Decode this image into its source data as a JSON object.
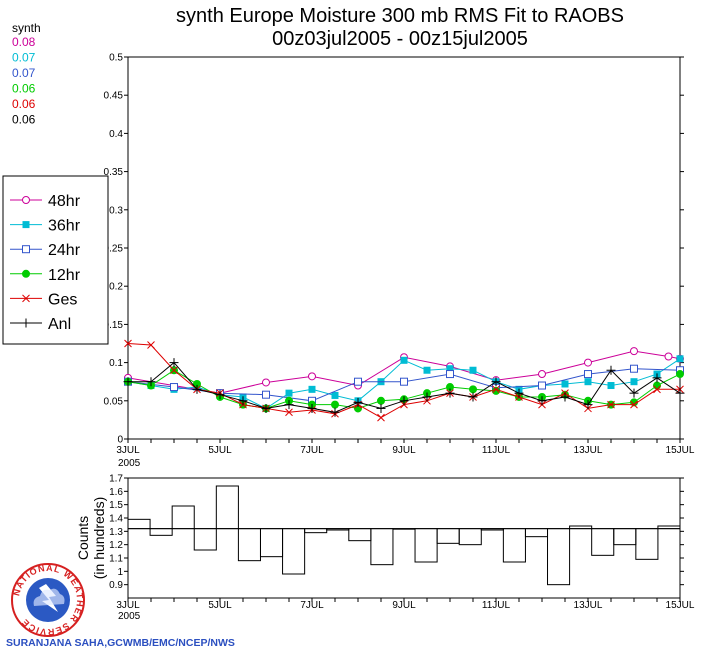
{
  "title_line1": "synth Europe Moisture 300 mb RMS Fit to RAOBS",
  "title_line2": "00z03jul2005 - 00z15jul2005",
  "summary": {
    "label": "synth",
    "values": [
      {
        "text": "0.08",
        "color": "#cc0099"
      },
      {
        "text": "0.07",
        "color": "#00bcd4"
      },
      {
        "text": "0.07",
        "color": "#3355cc"
      },
      {
        "text": "0.06",
        "color": "#00cc00"
      },
      {
        "text": "0.06",
        "color": "#dd0000"
      },
      {
        "text": "0.06",
        "color": "#000000"
      }
    ]
  },
  "credit": "SURANJANA SAHA,GCWMB/EMC/NCEP/NWS",
  "logo_text": "NATIONAL WEATHER SERVICE",
  "chart_data": [
    {
      "type": "line",
      "title": "synth Europe Moisture 300 mb RMS Fit to RAOBS",
      "subtitle": "00z03jul2005 - 00z15jul2005",
      "xlabel": "",
      "ylabel": "",
      "xlim": [
        0,
        24
      ],
      "ylim": [
        0,
        0.5
      ],
      "yticks": [
        0,
        0.05,
        0.1,
        0.15,
        0.2,
        0.25,
        0.3,
        0.35,
        0.4,
        0.45,
        0.5
      ],
      "ytick_labels": [
        "0",
        "0.05",
        "0.1",
        "0.15",
        "0.2",
        "0.25",
        "0.3",
        "0.35",
        "0.4",
        "0.45",
        "0.5"
      ],
      "xticks": [
        0,
        4,
        8,
        12,
        16,
        20,
        24
      ],
      "xtick_labels": [
        "3JUL",
        "5JUL",
        "7JUL",
        "9JUL",
        "11JUL",
        "13JUL",
        "15JUL"
      ],
      "xtick_sub": "2005",
      "legend_position": "left",
      "series": [
        {
          "name": "48hr",
          "color": "#cc0099",
          "marker": "circle-open",
          "x": [
            0,
            4,
            6,
            8,
            10,
            12,
            14,
            16,
            18,
            20,
            22,
            23.5,
            24
          ],
          "values": [
            0.08,
            0.06,
            0.074,
            0.082,
            0.07,
            0.107,
            0.095,
            0.077,
            0.085,
            0.1,
            0.115,
            0.108,
            0.105
          ]
        },
        {
          "name": "36hr",
          "color": "#00bcd4",
          "marker": "square-filled",
          "x": [
            0,
            1,
            2,
            3,
            4,
            5,
            6,
            7,
            8,
            9,
            10,
            11,
            12,
            13,
            14,
            15,
            16,
            17,
            18,
            19,
            20,
            21,
            22,
            23,
            24
          ],
          "values": [
            0.075,
            0.07,
            0.065,
            0.068,
            0.058,
            0.055,
            0.04,
            0.06,
            0.065,
            0.057,
            0.05,
            0.075,
            0.103,
            0.09,
            0.092,
            0.09,
            0.075,
            0.065,
            0.07,
            0.072,
            0.075,
            0.07,
            0.075,
            0.085,
            0.105
          ]
        },
        {
          "name": "24hr",
          "color": "#3355cc",
          "marker": "square-open",
          "x": [
            0,
            2,
            4,
            6,
            8,
            10,
            12,
            14,
            16,
            18,
            20,
            22,
            24
          ],
          "values": [
            0.075,
            0.068,
            0.06,
            0.058,
            0.05,
            0.075,
            0.075,
            0.085,
            0.067,
            0.07,
            0.085,
            0.092,
            0.09
          ]
        },
        {
          "name": "12hr",
          "color": "#00cc00",
          "marker": "circle-filled",
          "x": [
            0,
            1,
            2,
            3,
            4,
            5,
            6,
            7,
            8,
            9,
            10,
            11,
            12,
            13,
            14,
            15,
            16,
            17,
            18,
            19,
            20,
            21,
            22,
            23,
            24
          ],
          "values": [
            0.075,
            0.07,
            0.09,
            0.072,
            0.055,
            0.045,
            0.04,
            0.05,
            0.045,
            0.045,
            0.04,
            0.05,
            0.052,
            0.06,
            0.068,
            0.065,
            0.063,
            0.055,
            0.055,
            0.058,
            0.05,
            0.045,
            0.048,
            0.07,
            0.085
          ]
        },
        {
          "name": "Ges",
          "color": "#dd0000",
          "marker": "x",
          "x": [
            0,
            1,
            2,
            3,
            4,
            5,
            6,
            7,
            8,
            9,
            10,
            11,
            12,
            13,
            14,
            15,
            16,
            17,
            18,
            19,
            20,
            21,
            22,
            23,
            24
          ],
          "values": [
            0.125,
            0.123,
            0.09,
            0.065,
            0.06,
            0.045,
            0.04,
            0.035,
            0.038,
            0.033,
            0.045,
            0.028,
            0.045,
            0.05,
            0.06,
            0.055,
            0.065,
            0.055,
            0.045,
            0.06,
            0.04,
            0.045,
            0.045,
            0.065,
            0.065
          ]
        },
        {
          "name": "Anl",
          "color": "#000000",
          "marker": "plus",
          "x": [
            0,
            1,
            2,
            3,
            4,
            5,
            6,
            7,
            8,
            9,
            10,
            11,
            12,
            13,
            14,
            15,
            16,
            17,
            18,
            19,
            20,
            21,
            22,
            23,
            24
          ],
          "values": [
            0.075,
            0.075,
            0.1,
            0.065,
            0.058,
            0.05,
            0.04,
            0.045,
            0.04,
            0.035,
            0.048,
            0.04,
            0.05,
            0.055,
            0.06,
            0.055,
            0.075,
            0.06,
            0.05,
            0.055,
            0.045,
            0.09,
            0.06,
            0.08,
            0.06
          ]
        }
      ]
    },
    {
      "type": "bar",
      "title": "",
      "ylabel": "Counts (in hundreds)",
      "ylabel_lines": [
        "Counts",
        "(in hundreds)"
      ],
      "xlim": [
        0,
        24
      ],
      "ylim": [
        0.8,
        1.7
      ],
      "yticks": [
        0.9,
        1.0,
        1.1,
        1.2,
        1.3,
        1.4,
        1.5,
        1.6,
        1.7
      ],
      "ytick_labels": [
        "0.9",
        "1",
        "1.1",
        "1.2",
        "1.3",
        "1.4",
        "1.5",
        "1.6",
        "1.7"
      ],
      "xticks": [
        0,
        4,
        8,
        12,
        16,
        20,
        24
      ],
      "xtick_labels": [
        "3JUL",
        "5JUL",
        "7JUL",
        "9JUL",
        "11JUL",
        "13JUL",
        "15JUL"
      ],
      "xtick_sub": "2005",
      "reference_value": 1.32,
      "values": [
        1.39,
        1.27,
        1.49,
        1.16,
        1.64,
        1.08,
        1.11,
        0.98,
        1.29,
        1.31,
        1.23,
        1.05,
        1.32,
        1.07,
        1.21,
        1.2,
        1.31,
        1.07,
        1.26,
        0.9,
        1.34,
        1.12,
        1.2,
        1.09,
        1.34
      ]
    }
  ]
}
